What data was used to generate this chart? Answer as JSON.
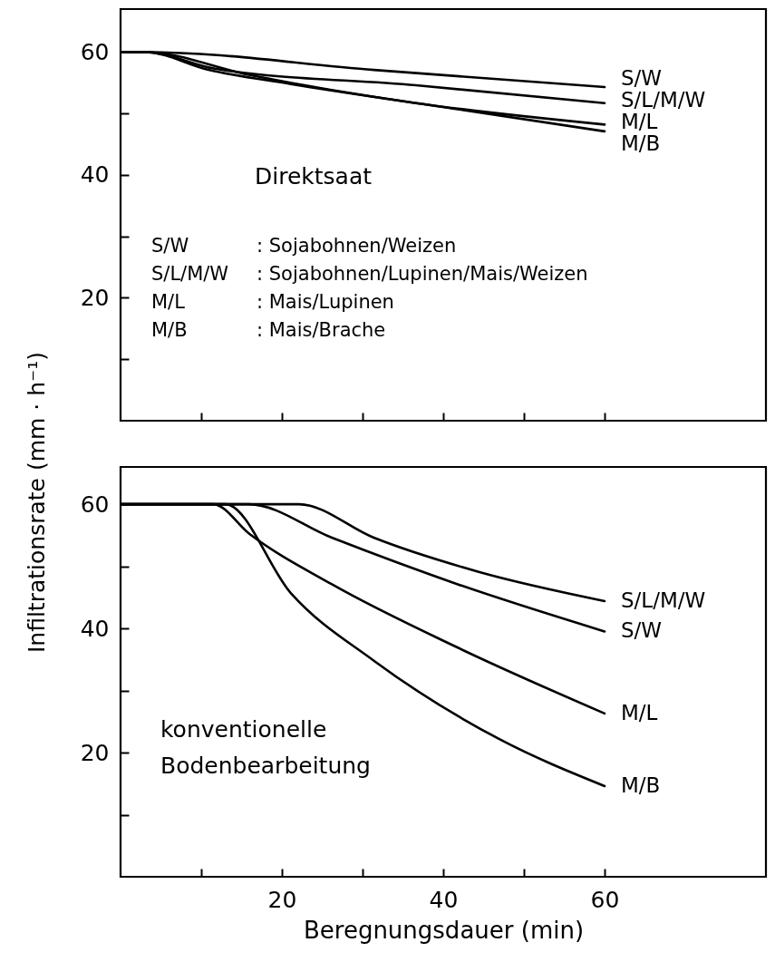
{
  "chart_data": [
    {
      "type": "line",
      "ylabel": "Infiltrationsrate (mm · h⁻¹)",
      "xlim": [
        0,
        80
      ],
      "xticks": [
        {
          "value": 10,
          "label": null
        },
        {
          "value": 20,
          "label": null
        },
        {
          "value": 30,
          "label": null
        },
        {
          "value": 40,
          "label": null
        },
        {
          "value": 50,
          "label": null
        },
        {
          "value": 60,
          "label": null
        }
      ],
      "ylim": [
        0,
        67
      ],
      "yticks": [
        {
          "value": 10,
          "label": null
        },
        20,
        {
          "value": 30,
          "label": null
        },
        40,
        {
          "value": 50,
          "label": null
        },
        60
      ],
      "tick_labels": "y",
      "annotations": [
        "Direktsaat",
        "S/W : Sojabohnen/Weizen",
        "S/L/M/W : Sojabohnen/Lupinen/Mais/Weizen",
        "M/L : Mais/Lupinen",
        "M/B : Mais/Brache"
      ],
      "series": [
        {
          "name": "S/W",
          "color": "#000000",
          "x": [
            0,
            3,
            31.4,
            60
          ],
          "values": [
            60,
            60,
            57.1,
            54.3
          ]
        },
        {
          "name": "S/L/M/W",
          "color": "#000000",
          "x": [
            0,
            3,
            11.7,
            36.6,
            60
          ],
          "values": [
            60,
            60,
            57.3,
            54.6,
            51.7
          ]
        },
        {
          "name": "M/L",
          "color": "#000000",
          "x": [
            0,
            3,
            15.9,
            36.6,
            60
          ],
          "values": [
            60,
            60,
            56.3,
            51.7,
            48.2
          ]
        },
        {
          "name": "M/B",
          "color": "#000000",
          "x": [
            0,
            3,
            10.9,
            21.1,
            41.8,
            60
          ],
          "values": [
            60,
            60,
            57.1,
            54.8,
            50.7,
            47.1
          ]
        }
      ]
    },
    {
      "type": "line",
      "xlabel": "Beregnungsdauer (min)",
      "xlim": [
        0,
        80
      ],
      "xticks": [
        {
          "value": 10,
          "label": null
        },
        20,
        {
          "value": 30,
          "label": null
        },
        40,
        {
          "value": 50,
          "label": null
        },
        60
      ],
      "ylim": [
        0,
        66
      ],
      "yticks": [
        {
          "value": 10,
          "label": null
        },
        20,
        {
          "value": 30,
          "label": null
        },
        40,
        {
          "value": 50,
          "label": null
        },
        60
      ],
      "annotations": [
        "konventionelle Bodenbearbeitung"
      ],
      "series": [
        {
          "name": "S/L/M/W",
          "color": "#000000",
          "x": [
            0,
            22.1,
            31.4,
            44.4,
            60
          ],
          "values": [
            60,
            60,
            54.6,
            49.1,
            44.4
          ]
        },
        {
          "name": "S/W",
          "color": "#000000",
          "x": [
            0,
            15.9,
            26.2,
            41.8,
            60
          ],
          "values": [
            60,
            60,
            54.6,
            47.1,
            39.5
          ]
        },
        {
          "name": "M/L",
          "color": "#000000",
          "x": [
            0,
            11.5,
            16,
            26.2,
            41.8,
            60
          ],
          "values": [
            60,
            60,
            55.2,
            47.1,
            36.9,
            26.3
          ]
        },
        {
          "name": "M/B",
          "color": "#000000",
          "x": [
            0,
            13,
            21.1,
            31.4,
            46.9,
            60
          ],
          "values": [
            60,
            60,
            45.7,
            34.8,
            22.2,
            14.6
          ]
        }
      ]
    }
  ]
}
